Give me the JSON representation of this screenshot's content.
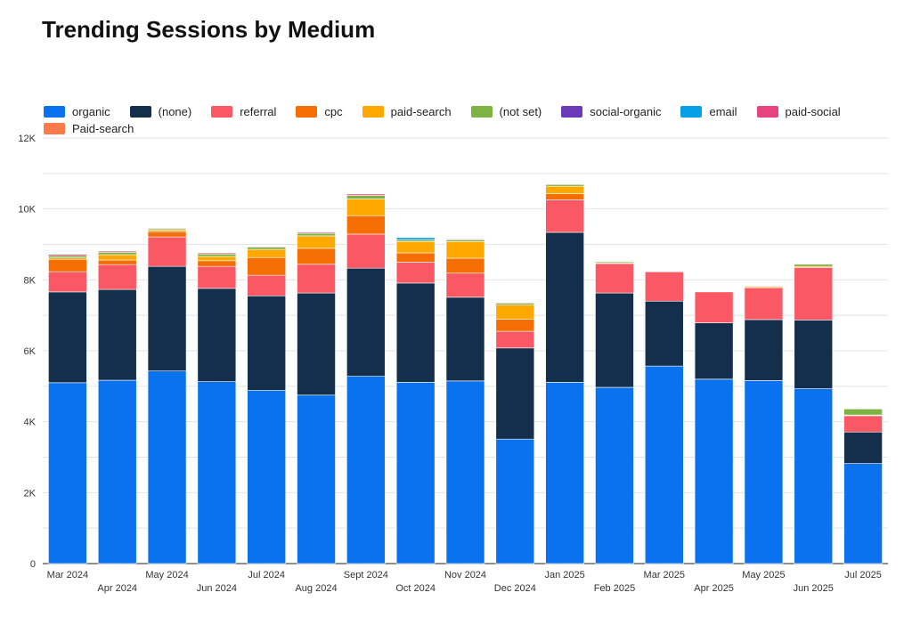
{
  "chart_data": {
    "type": "bar",
    "stacked": true,
    "title": "Trending Sessions by Medium",
    "xlabel": "",
    "ylabel": "",
    "ylim": [
      0,
      12000
    ],
    "yticks": [
      "0",
      "2K",
      "4K",
      "6K",
      "8K",
      "10K",
      "12K"
    ],
    "grid": true,
    "legend_position": "top",
    "categories": [
      "Mar 2024",
      "Apr 2024",
      "May 2024",
      "Jun 2024",
      "Jul 2024",
      "Aug 2024",
      "Sept 2024",
      "Oct 2024",
      "Nov 2024",
      "Dec 2024",
      "Jan 2025",
      "Feb 2025",
      "Mar 2025",
      "Apr 2025",
      "May 2025",
      "Jun 2025",
      "Jul 2025"
    ],
    "series": [
      {
        "name": "organic",
        "color": "#0a72ee",
        "values": [
          5100,
          5170,
          5430,
          5130,
          4880,
          4750,
          5280,
          5110,
          5150,
          3510,
          5110,
          4970,
          5570,
          5200,
          5160,
          4930,
          2820
        ]
      },
      {
        "name": "(none)",
        "color": "#142f4b",
        "values": [
          2560,
          2560,
          2950,
          2630,
          2670,
          2880,
          3050,
          2800,
          2360,
          2570,
          4230,
          2660,
          1830,
          1590,
          1720,
          1940,
          890
        ]
      },
      {
        "name": "referral",
        "color": "#f95864",
        "values": [
          570,
          700,
          830,
          620,
          580,
          810,
          960,
          590,
          680,
          470,
          920,
          830,
          830,
          870,
          900,
          1480,
          460
        ]
      },
      {
        "name": "cpc",
        "color": "#f46e02",
        "values": [
          350,
          130,
          150,
          160,
          500,
          450,
          520,
          260,
          420,
          340,
          170,
          0,
          0,
          0,
          0,
          0,
          0
        ]
      },
      {
        "name": "paid-search",
        "color": "#ffa800",
        "values": [
          40,
          150,
          40,
          120,
          230,
          350,
          470,
          320,
          470,
          400,
          210,
          20,
          0,
          0,
          30,
          30,
          20
        ]
      },
      {
        "name": "(not set)",
        "color": "#7cb342",
        "values": [
          60,
          70,
          40,
          70,
          60,
          70,
          100,
          50,
          50,
          50,
          50,
          30,
          0,
          0,
          20,
          60,
          170
        ]
      },
      {
        "name": "social-organic",
        "color": "#6a3ab8",
        "values": [
          0,
          0,
          0,
          0,
          0,
          0,
          0,
          0,
          0,
          0,
          0,
          0,
          0,
          0,
          0,
          0,
          0
        ]
      },
      {
        "name": "email",
        "color": "#06a0e6",
        "values": [
          0,
          0,
          0,
          0,
          0,
          0,
          0,
          60,
          0,
          0,
          0,
          0,
          0,
          0,
          0,
          0,
          0
        ]
      },
      {
        "name": "paid-social",
        "color": "#e9437f",
        "values": [
          40,
          30,
          20,
          30,
          20,
          30,
          40,
          0,
          20,
          20,
          10,
          0,
          10,
          0,
          0,
          0,
          0
        ]
      },
      {
        "name": "Paid-search",
        "color": "#ff7a4a",
        "values": [
          0,
          0,
          0,
          0,
          0,
          0,
          0,
          0,
          0,
          0,
          0,
          0,
          0,
          0,
          0,
          0,
          0
        ]
      }
    ]
  }
}
